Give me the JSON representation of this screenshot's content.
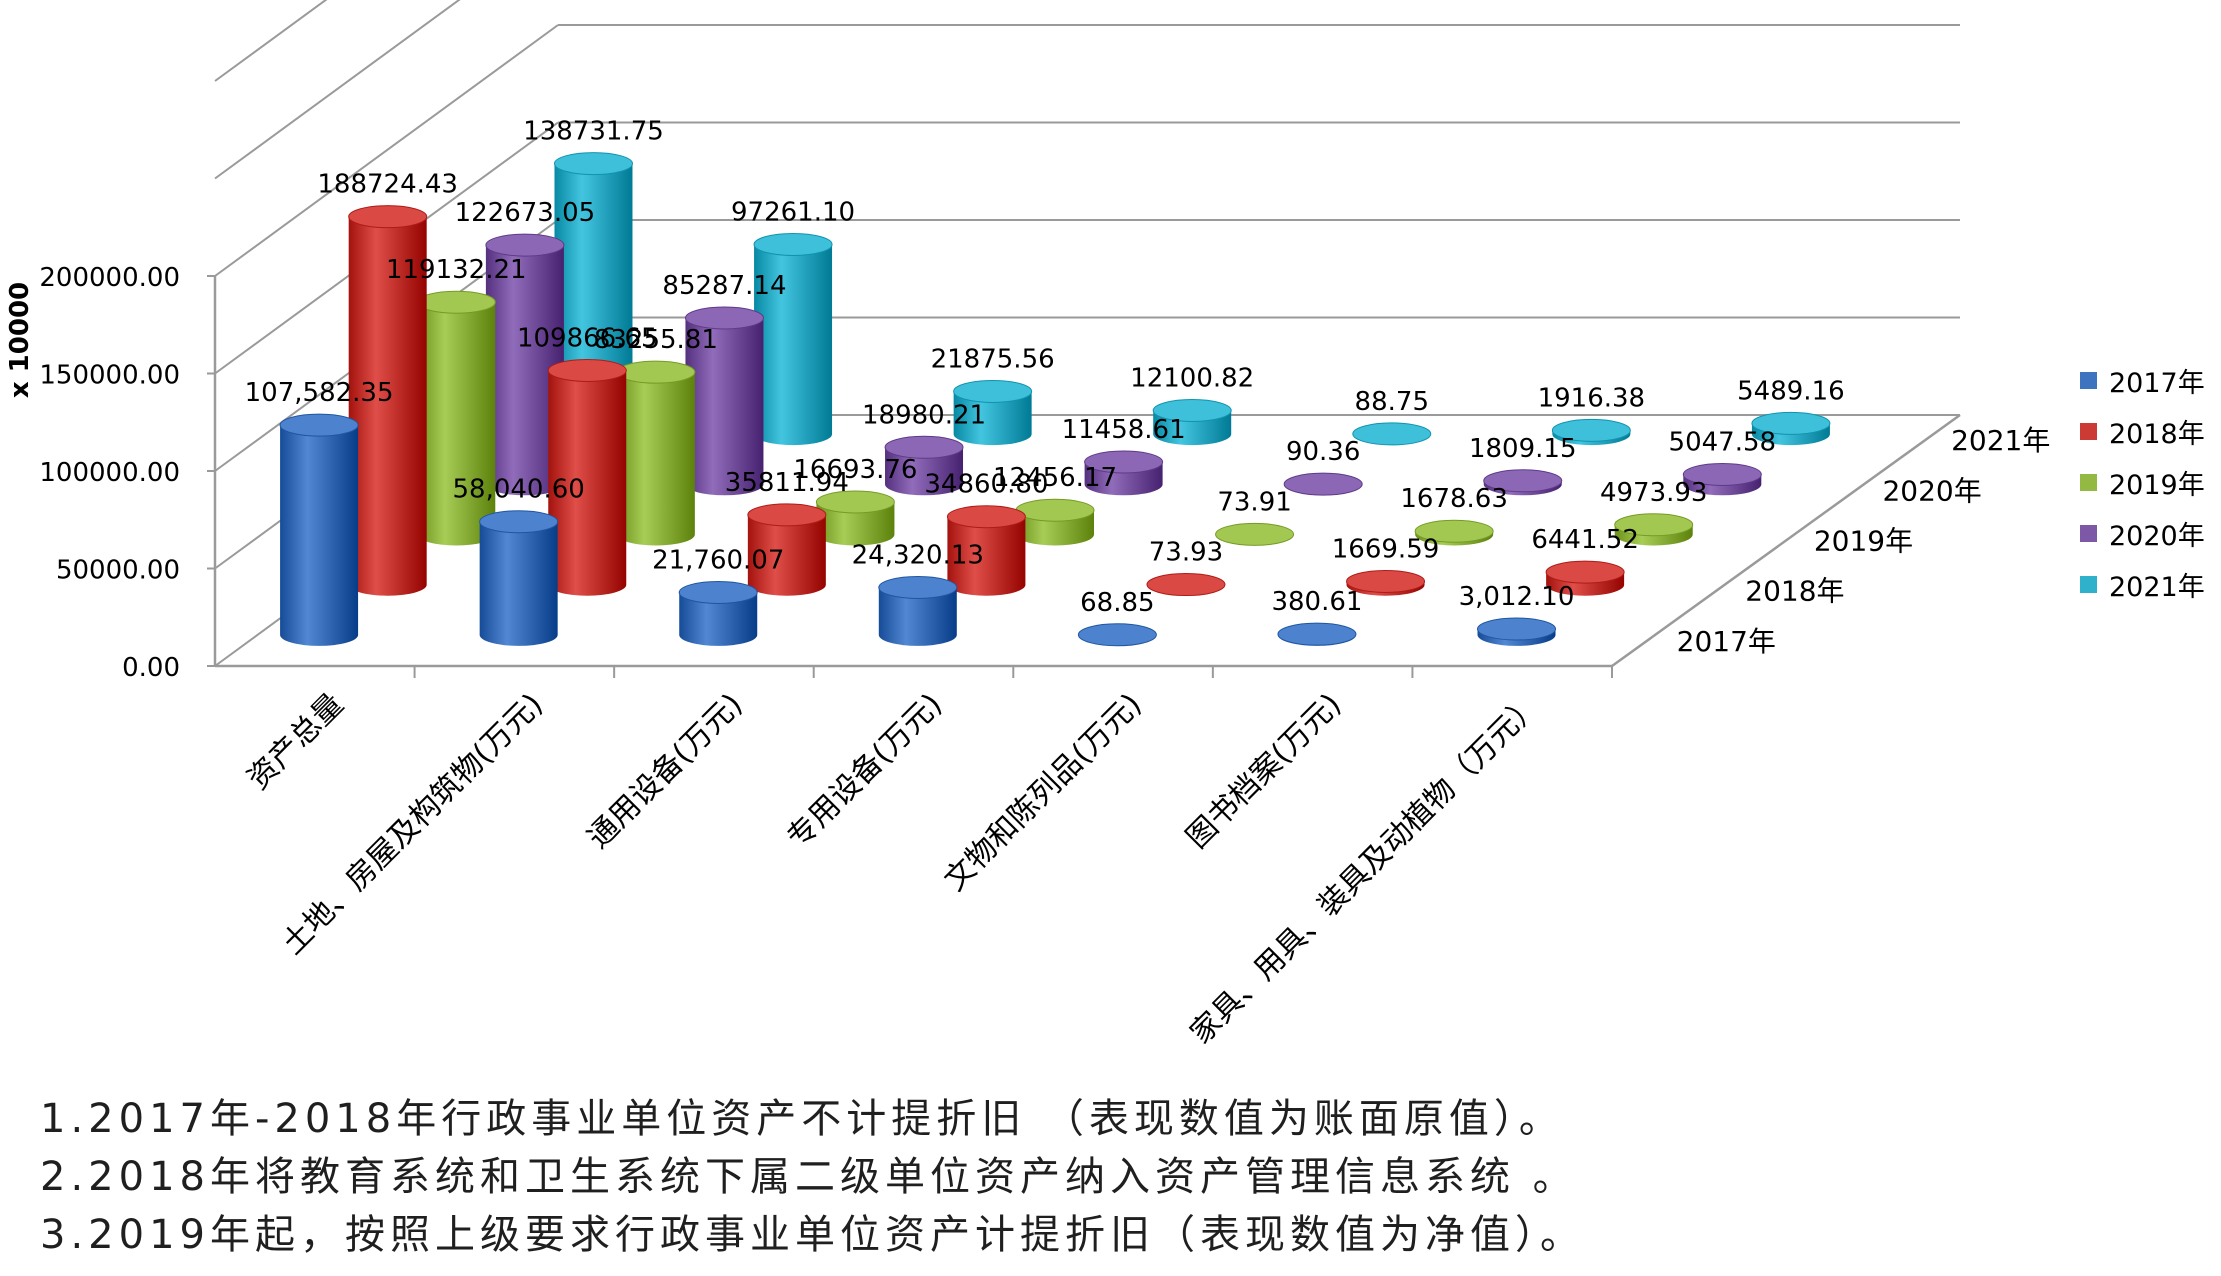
{
  "chart_data": {
    "type": "bar",
    "ylabel": "x 10000",
    "ylim": [
      0,
      200000
    ],
    "y_ticks": [
      "0.00",
      "50000.00",
      "100000.00",
      "150000.00",
      "200000.00"
    ],
    "categories": [
      "资产总量",
      "土地、房屋及构筑物(万元)",
      "通用设备(万元)",
      "专用设备(万元)",
      "文物和陈列品(万元)",
      "图书档案(万元)",
      "家具、用具、装具及动植物（万元）"
    ],
    "depth_labels": [
      "2017年",
      "2018年",
      "2019年",
      "2020年",
      "2021年"
    ],
    "series": [
      {
        "name": "2017年",
        "color": "#3e74bf",
        "values": [
          107582.35,
          58040.6,
          21760.07,
          24320.13,
          68.85,
          380.61,
          3012.1
        ],
        "labels": [
          "107,582.35",
          "58,040.60",
          "21,760.07",
          "24,320.13",
          "68.85",
          "380.61",
          "3,012.10"
        ]
      },
      {
        "name": "2018年",
        "color": "#cc3a35",
        "values": [
          188724.43,
          109866.65,
          35811.94,
          34860.8,
          73.93,
          1669.59,
          6441.52
        ],
        "labels": [
          "188724.43",
          "109866.65",
          "35811.94",
          "34860.80",
          "73.93",
          "1669.59",
          "6441.52"
        ]
      },
      {
        "name": "2019年",
        "color": "#93b943",
        "values": [
          119132.21,
          83255.81,
          16693.76,
          12456.17,
          73.91,
          1678.63,
          4973.93
        ],
        "labels": [
          "119132.21",
          "83255.81",
          "16693.76",
          "12456.17",
          "73.91",
          "1678.63",
          "4973.93"
        ]
      },
      {
        "name": "2020年",
        "color": "#7c58a6",
        "values": [
          122673.05,
          85287.14,
          18980.21,
          11458.61,
          90.36,
          1809.15,
          5047.58
        ],
        "labels": [
          "122673.05",
          "85287.14",
          "18980.21",
          "11458.61",
          "90.36",
          "1809.15",
          "5047.58"
        ]
      },
      {
        "name": "2021年",
        "color": "#2fb1cc",
        "values": [
          138731.75,
          97261.1,
          21875.56,
          12100.82,
          88.75,
          1916.38,
          5489.16
        ],
        "labels": [
          "138731.75",
          "97261.10",
          "21875.56",
          "12100.82",
          "88.75",
          "1916.38",
          "5489.16"
        ]
      }
    ],
    "legend_position": "right",
    "grid": true
  },
  "footnotes": [
    "1.2017年-2018年行政事业单位资产不计提折旧 （表现数值为账面原值）。",
    "2.2018年将教育系统和卫生系统下属二级单位资产纳入资产管理信息系统 。",
    "3.2019年起，按照上级要求行政事业单位资产计提折旧（表现数值为净值）。"
  ]
}
